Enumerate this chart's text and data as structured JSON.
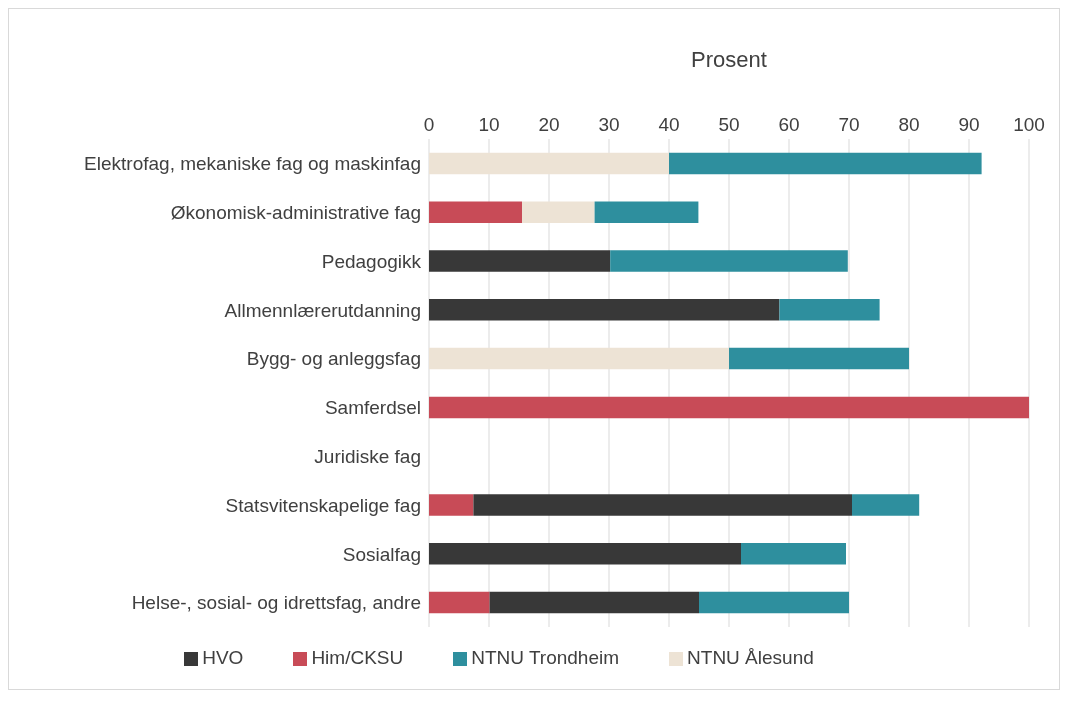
{
  "chart_data": {
    "type": "bar",
    "orientation": "horizontal",
    "stacked": true,
    "xlabel": "Prosent",
    "categories": [
      "Elektrofag, mekaniske fag og maskinfag",
      "Økonomisk-administrative fag",
      "Pedagogikk",
      "Allmennlærerutdanning",
      "Bygg- og anleggsfag",
      "Samferdsel",
      "Juridiske fag",
      "Statsvitenskapelige fag",
      "Sosialfag",
      "Helse-, sosial- og idrettsfag, andre"
    ],
    "series": [
      {
        "name": "Him/CKSU",
        "color": "#c84b57",
        "values": [
          null,
          15.5,
          null,
          null,
          null,
          100,
          null,
          7.4,
          null,
          10.1
        ]
      },
      {
        "name": "HVO",
        "color": "#383838",
        "values": [
          null,
          null,
          30.2,
          58.4,
          null,
          null,
          null,
          63.1,
          52,
          34.9
        ]
      },
      {
        "name": "NTNU Ålesund",
        "color": "#ede3d5",
        "values": [
          40,
          12.1,
          null,
          null,
          50,
          null,
          null,
          null,
          null,
          null
        ]
      },
      {
        "name": "NTNU Trondheim",
        "color": "#2e8f9e",
        "values": [
          52.1,
          17.3,
          39.6,
          16.7,
          30,
          null,
          null,
          11.2,
          17.5,
          25
        ]
      }
    ],
    "xlim": [
      0,
      100
    ],
    "xticks": [
      0,
      10,
      20,
      30,
      40,
      50,
      60,
      70,
      80,
      90,
      100
    ],
    "grid": "x",
    "legend": "bottom"
  }
}
